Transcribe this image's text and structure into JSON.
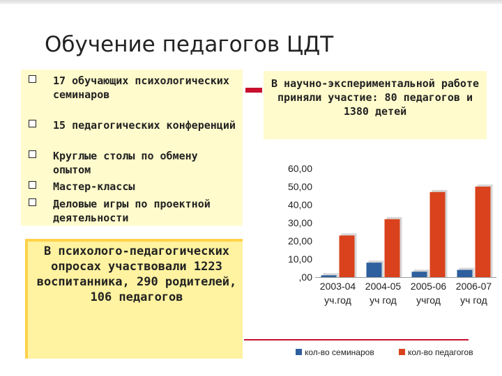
{
  "slide": {
    "title": "Обучение педагогов ЦДТ",
    "bullets": [
      "17 обучающих психологических семинаров",
      "15 педагогических конференций",
      "Круглые столы по обмену опытом",
      "Мастер-классы",
      "Деловые игры по проектной деятельности"
    ],
    "survey_text": "В психолого-педагогических опросах участвовали 1223 воспитанника, 290 родителей, 106 педагогов",
    "experiment_text": "В научно-экспериментальной работе приняли участие: 80 педагогов и 1380 детей"
  },
  "chart_data": {
    "type": "bar",
    "categories": [
      "2003-04 уч.год",
      "2004-05 уч год",
      "2005-06 учгод",
      "2006-07 уч год"
    ],
    "category_lines": [
      [
        "2003-04",
        "уч.год"
      ],
      [
        "2004-05",
        "уч год"
      ],
      [
        "2005-06",
        "учгод"
      ],
      [
        "2006-07",
        "уч год"
      ]
    ],
    "series": [
      {
        "name": "кол-во семинаров",
        "values": [
          1,
          8,
          3,
          4
        ],
        "color": "#2e5f9e"
      },
      {
        "name": "кол-во педагогов",
        "values": [
          23,
          32,
          47,
          50
        ],
        "color": "#d9421c"
      }
    ],
    "y_ticks": [
      ",00",
      "10,00",
      "20,00",
      "30,00",
      "40,00",
      "50,00",
      "60,00"
    ],
    "ylim": [
      0,
      60
    ],
    "legend_position": "bottom"
  }
}
